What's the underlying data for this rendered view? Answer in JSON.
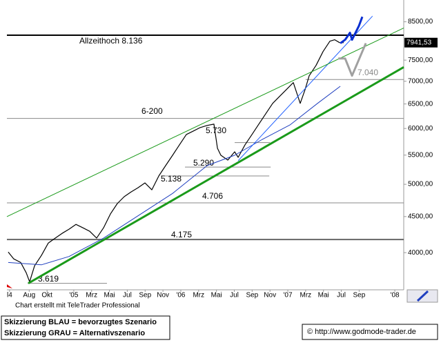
{
  "chart_data": {
    "type": "line",
    "log_scale": true,
    "xlim": [
      -1.5,
      43
    ],
    "ylim": [
      3543,
      9127
    ],
    "xticks": [
      {
        "value": -1.2,
        "label": "l4"
      },
      {
        "value": 1,
        "label": "Aug"
      },
      {
        "value": 3,
        "label": "Okt"
      },
      {
        "value": 6,
        "label": "'05"
      },
      {
        "value": 8,
        "label": "Mrz"
      },
      {
        "value": 10,
        "label": "Mai"
      },
      {
        "value": 12,
        "label": "Jul"
      },
      {
        "value": 14,
        "label": "Sep"
      },
      {
        "value": 16,
        "label": "Nov"
      },
      {
        "value": 18,
        "label": "'06"
      },
      {
        "value": 20,
        "label": "Mrz"
      },
      {
        "value": 22,
        "label": "Mai"
      },
      {
        "value": 24,
        "label": "Jul"
      },
      {
        "value": 26,
        "label": "Sep"
      },
      {
        "value": 28,
        "label": "Nov"
      },
      {
        "value": 30,
        "label": "'07"
      },
      {
        "value": 32,
        "label": "Mrz"
      },
      {
        "value": 34,
        "label": "Mai"
      },
      {
        "value": 36,
        "label": "Jul"
      },
      {
        "value": 38,
        "label": "Sep"
      },
      {
        "value": 42,
        "label": "'08"
      }
    ],
    "yticks": [
      {
        "value": 8500,
        "label": "8500,00"
      },
      {
        "value": 7500,
        "label": "7500,00"
      },
      {
        "value": 7000,
        "label": "7000,00"
      },
      {
        "value": 6500,
        "label": "6500,00"
      },
      {
        "value": 6000,
        "label": "6000,00"
      },
      {
        "value": 5500,
        "label": "5500,00"
      },
      {
        "value": 5000,
        "label": "5000,00"
      },
      {
        "value": 4500,
        "label": "4500,00"
      },
      {
        "value": 4000,
        "label": "4000,00"
      }
    ],
    "last_value": {
      "value": 7941.53,
      "label": "7941,53"
    },
    "series": [
      {
        "color": "#000000",
        "width": 1.2,
        "x": [
          -1.35,
          -0.73,
          0.05,
          0.67,
          1.05,
          1.6,
          2.37,
          3.14,
          3.92,
          4.69,
          5.47,
          6.24,
          7.01,
          7.79,
          8.56,
          9.34,
          10.11,
          10.88,
          11.66,
          12.43,
          13.21,
          13.98,
          14.75,
          15.53,
          16.3,
          17.08,
          17.85,
          18.62,
          19.4,
          20.17,
          20.95,
          21.72,
          22.11,
          22.49,
          23.27,
          24.04,
          24.43,
          25.2,
          25.98,
          26.75,
          27.52,
          28.3,
          29.07,
          29.85,
          30.62,
          31.39,
          31.94,
          32.4,
          33.17,
          33.95,
          34.72,
          35.26,
          35.81,
          36.27
        ],
        "values": [
          4009,
          3919,
          3874,
          3746,
          3637,
          3832,
          3964,
          4128,
          4194,
          4260,
          4319,
          4387,
          4338,
          4289,
          4194,
          4338,
          4538,
          4695,
          4802,
          4878,
          4945,
          5023,
          4911,
          5138,
          5315,
          5498,
          5688,
          5884,
          5950,
          6017,
          6059,
          6086,
          5624,
          5498,
          5412,
          5560,
          5461,
          5688,
          5884,
          6086,
          6295,
          6512,
          6661,
          6814,
          6969,
          6512,
          6814,
          7127,
          7374,
          7714,
          7979,
          8016,
          7941,
          7941.53
        ]
      },
      {
        "color": "#1f3fbf",
        "width": 1,
        "x": [
          -1.35,
          2.37,
          5.47,
          9.34,
          13.21,
          17.08,
          20.95,
          24.04,
          27.14,
          30.24,
          33.33,
          35.89
        ],
        "values": [
          3874,
          3844,
          3950,
          4194,
          4512,
          4854,
          5315,
          5497,
          5790,
          6069,
          6512,
          6887
        ]
      },
      {
        "color": "#2060ff",
        "width": 1,
        "x": [
          24.43,
          39.5
        ],
        "values": [
          5400,
          8660
        ]
      },
      {
        "color": "#1a9a1a",
        "width": 1,
        "x": [
          -1.5,
          43
        ],
        "values": [
          4500,
          8330
        ]
      },
      {
        "color": "#1a9a1a",
        "width": 3,
        "x": [
          0.9,
          43
        ],
        "values": [
          3619,
          7330
        ]
      },
      {
        "color": "#0a2fd0",
        "width": 3,
        "x": [
          35.89,
          36.43,
          36.97,
          37.2,
          37.98,
          38.36
        ],
        "values": [
          7925,
          8016,
          8200,
          8016,
          8390,
          8640
        ]
      },
      {
        "color": "#a0a0a0",
        "width": 3,
        "x": [
          35.66,
          36.43,
          37.2,
          38.75
        ],
        "values": [
          7540,
          7540,
          7129,
          7925
        ]
      }
    ],
    "levels": [
      {
        "label": "Allzeithoch 8.136",
        "value": 8136,
        "x": [
          -1.5,
          43
        ],
        "color": "#000000",
        "width": 2
      },
      {
        "label": "7.040",
        "value": 7040,
        "x": [
          32,
          43
        ],
        "color": "#888888",
        "width": 1
      },
      {
        "label": "6-200",
        "value": 6200,
        "x": [
          -1.5,
          43
        ],
        "color": "#888888",
        "width": 1
      },
      {
        "label": "5.730",
        "value": 5730,
        "x": [
          24.04,
          28
        ],
        "color": "#888888",
        "width": 1
      },
      {
        "label": "5.290",
        "value": 5290,
        "x": [
          18.47,
          28.08
        ],
        "color": "#888888",
        "width": 1
      },
      {
        "label": "5.138",
        "value": 5138,
        "x": [
          15.76,
          27.92
        ],
        "color": "#888888",
        "width": 1
      },
      {
        "label": "4.706",
        "value": 4706,
        "x": [
          -1.5,
          43
        ],
        "color": "#888888",
        "width": 1
      },
      {
        "label": "4.175",
        "value": 4175,
        "x": [
          -1.5,
          43
        ],
        "color": "#666666",
        "width": 2
      },
      {
        "label": "3.619",
        "value": 3619,
        "x": [
          0.82,
          9.72
        ],
        "color": "#888888",
        "width": 1
      }
    ]
  },
  "credit": "Chart erstellt mit TeleTrader Professional",
  "legend_lines": [
    "Skizzierung BLAU = bevorzugtes Szenario",
    "Skizzierung GRAU = Alternativszenario"
  ],
  "source": "© http://www.godmode-trader.de"
}
